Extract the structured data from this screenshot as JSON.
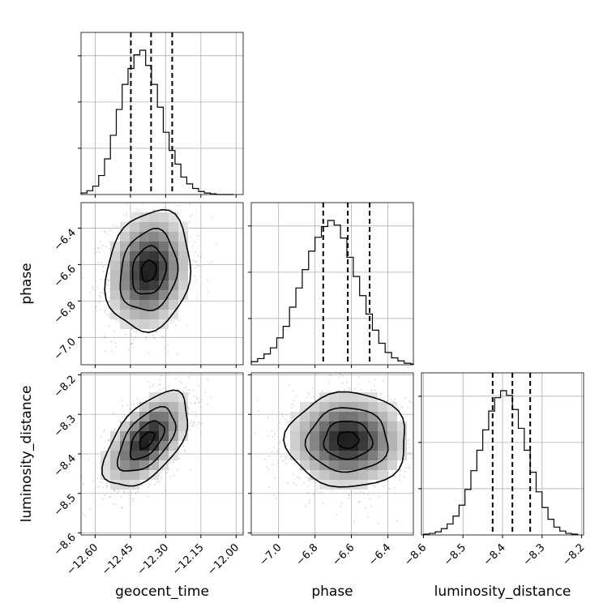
{
  "chart_data": {
    "type": "corner",
    "parameters": [
      "geocent_time",
      "phase",
      "luminosity_distance"
    ],
    "ranges": {
      "geocent_time": [
        -12.66,
        -11.97
      ],
      "phase": [
        -7.15,
        -6.26
      ],
      "luminosity_distance": [
        -8.605,
        -8.195
      ]
    },
    "tick_labels": {
      "geocent_time": [
        "−12.60",
        "−12.45",
        "−12.30",
        "−12.15",
        "−12.00"
      ],
      "phase": [
        "−7.0",
        "−6.8",
        "−6.6",
        "−6.4"
      ],
      "luminosity_distance": [
        "−8.6",
        "−8.5",
        "−8.4",
        "−8.3",
        "−8.2"
      ]
    },
    "ticks": {
      "geocent_time": [
        -12.6,
        -12.45,
        -12.3,
        -12.15,
        -12.0
      ],
      "phase": [
        -7.0,
        -6.8,
        -6.6,
        -6.4
      ],
      "luminosity_distance": [
        -8.6,
        -8.5,
        -8.4,
        -8.3,
        -8.2
      ]
    },
    "quantiles": {
      "geocent_time": [
        -12.448,
        -12.362,
        -12.272
      ],
      "phase": [
        -6.755,
        -6.62,
        -6.5
      ],
      "luminosity_distance": [
        -8.425,
        -8.375,
        -8.33
      ]
    },
    "histograms": {
      "geocent_time": {
        "edges": [
          -12.66,
          -12.635,
          -12.61,
          -12.585,
          -12.56,
          -12.535,
          -12.51,
          -12.485,
          -12.46,
          -12.435,
          -12.41,
          -12.385,
          -12.36,
          -12.335,
          -12.31,
          -12.285,
          -12.26,
          -12.235,
          -12.21,
          -12.185,
          -12.16,
          -12.135,
          -12.11,
          -12.085,
          -12.06,
          -12.035,
          -12.01
        ],
        "counts": [
          2,
          5,
          11,
          25,
          47,
          78,
          112,
          145,
          166,
          184,
          190,
          170,
          145,
          115,
          82,
          58,
          40,
          23,
          14,
          8,
          4,
          2,
          1,
          0,
          0,
          0
        ]
      },
      "phase": {
        "edges": [
          -7.15,
          -7.115,
          -7.08,
          -7.045,
          -7.01,
          -6.975,
          -6.94,
          -6.905,
          -6.87,
          -6.835,
          -6.8,
          -6.765,
          -6.73,
          -6.695,
          -6.66,
          -6.625,
          -6.59,
          -6.555,
          -6.52,
          -6.485,
          -6.45,
          -6.415,
          -6.38,
          -6.345,
          -6.31,
          -6.275,
          -6.26
        ],
        "counts": [
          4,
          8,
          14,
          22,
          35,
          50,
          75,
          100,
          124,
          148,
          166,
          180,
          188,
          182,
          165,
          140,
          115,
          90,
          66,
          45,
          28,
          16,
          9,
          5,
          2,
          1
        ]
      },
      "luminosity_distance": {
        "edges": [
          -8.6,
          -8.585,
          -8.57,
          -8.555,
          -8.54,
          -8.525,
          -8.51,
          -8.495,
          -8.48,
          -8.465,
          -8.45,
          -8.435,
          -8.42,
          -8.405,
          -8.39,
          -8.375,
          -8.36,
          -8.345,
          -8.33,
          -8.315,
          -8.3,
          -8.285,
          -8.27,
          -8.255,
          -8.24,
          -8.225,
          -8.21
        ],
        "counts": [
          1,
          2,
          4,
          8,
          14,
          24,
          38,
          58,
          82,
          108,
          134,
          158,
          175,
          184,
          178,
          160,
          136,
          108,
          80,
          55,
          35,
          20,
          10,
          5,
          2,
          1
        ]
      }
    },
    "pairs": [
      {
        "x": "geocent_time",
        "y": "phase",
        "center": [
          -12.372,
          -6.635
        ],
        "sigma": [
          0.09,
          0.165
        ],
        "rho": 0.15
      },
      {
        "x": "geocent_time",
        "y": "luminosity_distance",
        "center": [
          -12.38,
          -8.365
        ],
        "sigma": [
          0.09,
          0.06
        ],
        "rho": 0.55
      },
      {
        "x": "phase",
        "y": "luminosity_distance",
        "center": [
          -6.62,
          -8.365
        ],
        "sigma": [
          0.165,
          0.06
        ],
        "rho": 0.0
      }
    ],
    "grid": true
  }
}
